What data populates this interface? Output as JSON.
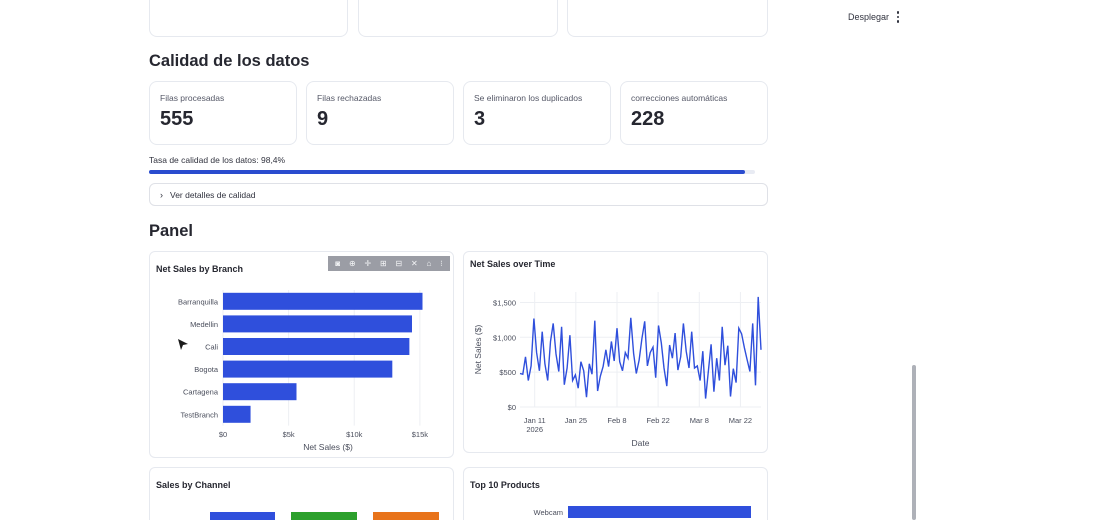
{
  "toolbar": {
    "deploy_label": "Desplegar",
    "menu_icon": "kebab-menu-icon"
  },
  "quality": {
    "title": "Calidad de los datos",
    "metrics": [
      {
        "label": "Filas procesadas",
        "value": "555"
      },
      {
        "label": "Filas rechazadas",
        "value": "9"
      },
      {
        "label": "Se eliminaron los duplicados",
        "value": "3"
      },
      {
        "label": "correcciones automáticas",
        "value": "228"
      }
    ],
    "rate_text": "Tasa de calidad de los datos: 98,4%",
    "rate_value": 98.4,
    "expander_label": "Ver detalles de calidad"
  },
  "panel": {
    "title": "Panel",
    "branch_title": "Net Sales by Branch",
    "time_title": "Net Sales over Time",
    "channel_title": "Sales by Channel",
    "products_title": "Top 10 Products"
  },
  "colors": {
    "primary": "#2a4ccf",
    "bar": "#2f4fdc",
    "green": "#2ca02c",
    "orange": "#e8731a"
  },
  "chart_data": [
    {
      "type": "bar",
      "orientation": "horizontal",
      "title": "Net Sales by Branch",
      "categories": [
        "Barranquilla",
        "Medellin",
        "Cali",
        "Bogota",
        "Cartagena",
        "TestBranch"
      ],
      "values": [
        15200,
        14400,
        14200,
        12900,
        5600,
        2100
      ],
      "xlabel": "Net Sales ($)",
      "xticks": [
        "$0",
        "$5k",
        "$10k",
        "$15k"
      ],
      "xlim": [
        0,
        16000
      ]
    },
    {
      "type": "line",
      "title": "Net Sales over Time",
      "xlabel": "Date",
      "ylabel": "Net Sales ($)",
      "xticks": [
        "Jan 11\n2026",
        "Jan 25",
        "Feb 8",
        "Feb 22",
        "Mar 8",
        "Mar 22"
      ],
      "yticks": [
        "$0",
        "$500",
        "$1,000",
        "$1,500"
      ],
      "ylim": [
        0,
        1650
      ],
      "x_start": "2026-01-06",
      "x_end": "2026-03-29",
      "values": [
        480,
        470,
        720,
        380,
        590,
        1270,
        780,
        520,
        1080,
        620,
        380,
        940,
        1200,
        760,
        510,
        1150,
        320,
        560,
        1030,
        380,
        460,
        270,
        650,
        520,
        140,
        620,
        470,
        1240,
        230,
        440,
        580,
        820,
        580,
        940,
        660,
        1130,
        650,
        520,
        780,
        700,
        1280,
        770,
        480,
        670,
        980,
        1230,
        590,
        780,
        860,
        420,
        1170,
        920,
        560,
        300,
        890,
        700,
        1060,
        530,
        720,
        1200,
        800,
        560,
        1080,
        560,
        590,
        380,
        800,
        120,
        520,
        900,
        220,
        700,
        380,
        1150,
        600,
        880,
        150,
        550,
        350,
        1130,
        1050,
        850,
        680,
        510,
        1200,
        310,
        1580,
        820
      ]
    },
    {
      "type": "bar",
      "title": "Sales by Channel",
      "series_colors": [
        "#2f4fdc",
        "#2ca02c",
        "#e8731a"
      ]
    },
    {
      "type": "bar",
      "orientation": "horizontal",
      "title": "Top 10 Products",
      "categories": [
        "Webcam"
      ]
    }
  ]
}
